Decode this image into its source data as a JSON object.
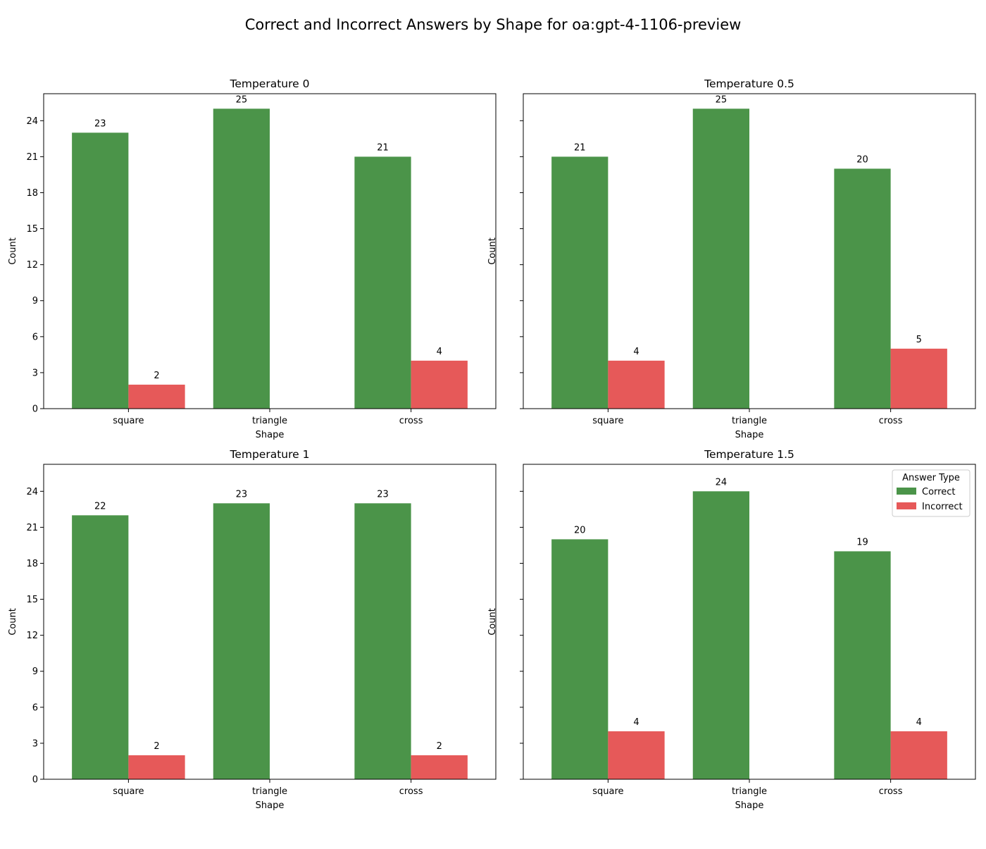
{
  "figure": {
    "title": "Correct and Incorrect Answers by Shape for oa:gpt-4-1106-preview"
  },
  "legend": {
    "title": "Answer Type",
    "placement": "upper-right of Temperature 1.5 panel",
    "entries": [
      {
        "label": "Correct",
        "color": "#4b9449"
      },
      {
        "label": "Incorrect",
        "color": "#e65959"
      }
    ]
  },
  "chart_data": [
    {
      "type": "bar",
      "title": "Temperature 0",
      "xlabel": "Shape",
      "ylabel": "Count",
      "categories": [
        "square",
        "triangle",
        "cross"
      ],
      "series": [
        {
          "name": "Correct",
          "values": [
            23,
            25,
            21
          ]
        },
        {
          "name": "Incorrect",
          "values": [
            2,
            0,
            4
          ]
        }
      ],
      "data_labels": [
        [
          "23",
          "25",
          "21"
        ],
        [
          "2",
          "",
          "4"
        ]
      ],
      "ylim": [
        0,
        26.25
      ],
      "yticks": [
        0,
        3,
        6,
        9,
        12,
        15,
        18,
        21,
        24
      ],
      "show_ytick_labels": true,
      "grid": false
    },
    {
      "type": "bar",
      "title": "Temperature 0.5",
      "xlabel": "Shape",
      "ylabel": "Count",
      "categories": [
        "square",
        "triangle",
        "cross"
      ],
      "series": [
        {
          "name": "Correct",
          "values": [
            21,
            25,
            20
          ]
        },
        {
          "name": "Incorrect",
          "values": [
            4,
            0,
            5
          ]
        }
      ],
      "data_labels": [
        [
          "21",
          "25",
          "20"
        ],
        [
          "4",
          "",
          "5"
        ]
      ],
      "ylim": [
        0,
        26.25
      ],
      "yticks": [
        0,
        3,
        6,
        9,
        12,
        15,
        18,
        21,
        24
      ],
      "show_ytick_labels": false,
      "grid": false
    },
    {
      "type": "bar",
      "title": "Temperature 1",
      "xlabel": "Shape",
      "ylabel": "Count",
      "categories": [
        "square",
        "triangle",
        "cross"
      ],
      "series": [
        {
          "name": "Correct",
          "values": [
            22,
            23,
            23
          ]
        },
        {
          "name": "Incorrect",
          "values": [
            2,
            0,
            2
          ]
        }
      ],
      "data_labels": [
        [
          "22",
          "23",
          "23"
        ],
        [
          "2",
          "",
          "2"
        ]
      ],
      "ylim": [
        0,
        26.25
      ],
      "yticks": [
        0,
        3,
        6,
        9,
        12,
        15,
        18,
        21,
        24
      ],
      "show_ytick_labels": true,
      "grid": false
    },
    {
      "type": "bar",
      "title": "Temperature 1.5",
      "xlabel": "Shape",
      "ylabel": "Count",
      "categories": [
        "square",
        "triangle",
        "cross"
      ],
      "series": [
        {
          "name": "Correct",
          "values": [
            20,
            24,
            19
          ]
        },
        {
          "name": "Incorrect",
          "values": [
            4,
            0,
            4
          ]
        }
      ],
      "data_labels": [
        [
          "20",
          "24",
          "19"
        ],
        [
          "4",
          "",
          "4"
        ]
      ],
      "ylim": [
        0,
        26.25
      ],
      "yticks": [
        0,
        3,
        6,
        9,
        12,
        15,
        18,
        21,
        24
      ],
      "show_ytick_labels": false,
      "grid": false,
      "has_legend": true
    }
  ]
}
